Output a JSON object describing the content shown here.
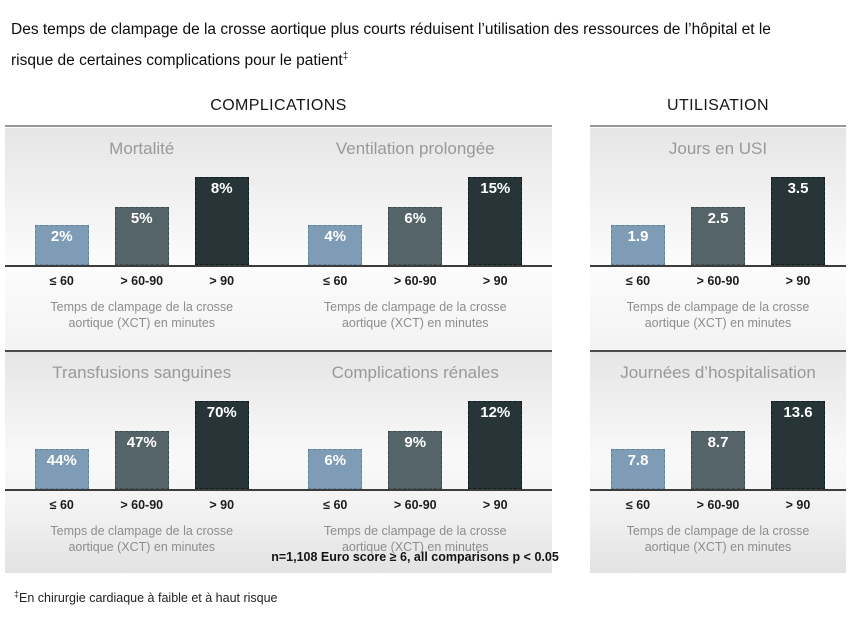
{
  "page": {
    "title": "Des temps de clampage de la crosse aortique plus courts réduisent l’utilisation des ressources de l’hôpital et le risque de certaines complications pour le patient",
    "title_superscript": "‡",
    "footnote_symbol": "‡",
    "footnote": "En chirurgie cardiaque à faible et à haut risque"
  },
  "sections": {
    "complications": "COMPLICATIONS",
    "utilisation": "UTILISATION"
  },
  "axis": {
    "tick_labels": [
      "≤ 60",
      "> 60-90",
      "> 90"
    ],
    "caption": "Temps de clampage de la crosse aortique (XCT) en minutes"
  },
  "note": "n=1,108  Euro score ≥ 6, all comparisons p < 0.05",
  "colors": {
    "bars": [
      "#7e9cb5",
      "#556468",
      "#273538"
    ],
    "bar_borders": [
      "#64829b",
      "#3d4c50",
      "#121f22"
    ],
    "bar_value_text": "#ffffff",
    "header_line": "#97979a",
    "baseline": "#3c3c3c",
    "row_separator": "#4c4c4c"
  },
  "chart_data": [
    {
      "type": "bar",
      "title": "Mortalité",
      "section": "COMPLICATIONS",
      "categories": [
        "≤ 60",
        "> 60-90",
        "> 90"
      ],
      "values": [
        2,
        5,
        8
      ],
      "value_labels": [
        "2%",
        "5%",
        "8%"
      ],
      "xlabel": "Temps de clampage de la crosse aortique (XCT) en minutes",
      "unit": "%"
    },
    {
      "type": "bar",
      "title": "Ventilation prolongée",
      "section": "COMPLICATIONS",
      "categories": [
        "≤ 60",
        "> 60-90",
        "> 90"
      ],
      "values": [
        4,
        6,
        15
      ],
      "value_labels": [
        "4%",
        "6%",
        "15%"
      ],
      "xlabel": "Temps de clampage de la crosse aortique (XCT) en minutes",
      "unit": "%"
    },
    {
      "type": "bar",
      "title": "Jours en USI",
      "section": "UTILISATION",
      "categories": [
        "≤ 60",
        "> 60-90",
        "> 90"
      ],
      "values": [
        1.9,
        2.5,
        3.5
      ],
      "value_labels": [
        "1.9",
        "2.5",
        "3.5"
      ],
      "xlabel": "Temps de clampage de la crosse aortique (XCT) en minutes",
      "unit": "jours"
    },
    {
      "type": "bar",
      "title": "Transfusions sanguines",
      "section": "COMPLICATIONS",
      "categories": [
        "≤ 60",
        "> 60-90",
        "> 90"
      ],
      "values": [
        44,
        47,
        70
      ],
      "value_labels": [
        "44%",
        "47%",
        "70%"
      ],
      "xlabel": "Temps de clampage de la crosse aortique (XCT) en minutes",
      "unit": "%"
    },
    {
      "type": "bar",
      "title": "Complications rénales",
      "section": "COMPLICATIONS",
      "categories": [
        "≤ 60",
        "> 60-90",
        "> 90"
      ],
      "values": [
        6,
        9,
        12
      ],
      "value_labels": [
        "6%",
        "9%",
        "12%"
      ],
      "xlabel": "Temps de clampage de la crosse aortique (XCT) en minutes",
      "unit": "%"
    },
    {
      "type": "bar",
      "title": "Journées d’hospitalisation",
      "section": "UTILISATION",
      "categories": [
        "≤ 60",
        "> 60-90",
        "> 90"
      ],
      "values": [
        7.8,
        8.7,
        13.6
      ],
      "value_labels": [
        "7.8",
        "8.7",
        "13.6"
      ],
      "xlabel": "Temps de clampage de la crosse aortique (XCT) en minutes",
      "unit": "jours"
    }
  ]
}
